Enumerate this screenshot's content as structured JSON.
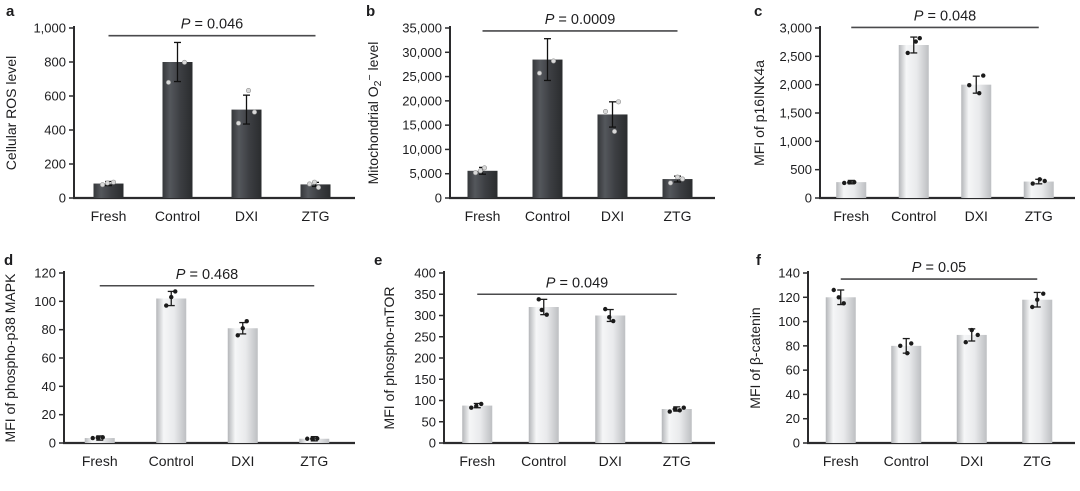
{
  "figure_background": "#ffffff",
  "colors": {
    "axis": "#2b2b2d",
    "text": "#1d1d1f",
    "sig_line": "#4a4a4c",
    "error_bar_dark_panel": "#111111",
    "error_bar_light_panel": "#1c1c1c",
    "dot_on_dark_bars": "#d9d9d9",
    "dot_stroke_on_dark_bars": "#8f8f8f",
    "dot_on_light_bars": "#1b1b1b",
    "dark_bar_gradient": [
      "#35373a",
      "#54575c",
      "#3c3e42",
      "#2a2c2e"
    ],
    "light_bar_gradient": [
      "#b4b6b9",
      "#f5f6f7",
      "#e9eaec",
      "#bdbfc2"
    ]
  },
  "chart_data": [
    {
      "panel_label": "a",
      "type": "bar",
      "ylabel": "Cellular ROS level",
      "ylabel_parts": [
        [
          "Cellular ROS level",
          "n"
        ]
      ],
      "p_text": "P = 0.046",
      "p_line_y": 955,
      "ylim": [
        0,
        1000
      ],
      "yticks": [
        {
          "v": 0,
          "label": "0"
        },
        {
          "v": 200,
          "label": "200"
        },
        {
          "v": 400,
          "label": "400"
        },
        {
          "v": 600,
          "label": "600"
        },
        {
          "v": 800,
          "label": "800"
        },
        {
          "v": 1000,
          "label": "1,000"
        }
      ],
      "categories": [
        "Fresh",
        "Control",
        "DXI",
        "ZTG"
      ],
      "bar_style": "dark",
      "values": [
        85,
        800,
        520,
        80
      ],
      "errors": [
        12,
        115,
        85,
        12
      ],
      "dots": [
        [
          {
            "v": 78,
            "dx": -6
          },
          {
            "v": 88,
            "dx": -1
          },
          {
            "v": 93,
            "dx": 5
          }
        ],
        [
          {
            "v": 680,
            "dx": -9
          },
          {
            "v": 798,
            "dx": 7
          }
        ],
        [
          {
            "v": 440,
            "dx": -8
          },
          {
            "v": 505,
            "dx": 8
          },
          {
            "v": 632,
            "dx": 2
          }
        ],
        [
          {
            "v": 62,
            "dx": 3
          },
          {
            "v": 82,
            "dx": -6
          },
          {
            "v": 93,
            "dx": -1
          }
        ]
      ]
    },
    {
      "panel_label": "b",
      "type": "bar",
      "ylabel": "Mitochondrial O2− level",
      "ylabel_parts": [
        [
          "Mitochondrial O",
          "n"
        ],
        [
          "2",
          "sub"
        ],
        [
          "−",
          "sup"
        ],
        [
          " level",
          "n"
        ]
      ],
      "p_text": "P = 0.0009",
      "p_line_y": 34400,
      "ylim": [
        0,
        35000
      ],
      "yticks": [
        {
          "v": 0,
          "label": "0"
        },
        {
          "v": 5000,
          "label": "5,000"
        },
        {
          "v": 10000,
          "label": "10,000"
        },
        {
          "v": 15000,
          "label": "15,000"
        },
        {
          "v": 20000,
          "label": "20,000"
        },
        {
          "v": 25000,
          "label": "25,000"
        },
        {
          "v": 30000,
          "label": "30,000"
        },
        {
          "v": 35000,
          "label": "35,000"
        }
      ],
      "categories": [
        "Fresh",
        "Control",
        "DXI",
        "ZTG"
      ],
      "bar_style": "dark",
      "values": [
        5600,
        28500,
        17200,
        3900
      ],
      "errors": [
        700,
        4300,
        2600,
        600
      ],
      "dots": [
        [
          {
            "v": 5200,
            "dx": -7
          },
          {
            "v": 5600,
            "dx": -2
          },
          {
            "v": 6200,
            "dx": 2
          }
        ],
        [
          {
            "v": 25700,
            "dx": -8
          },
          {
            "v": 28200,
            "dx": 6
          }
        ],
        [
          {
            "v": 13700,
            "dx": 2
          },
          {
            "v": 17800,
            "dx": -7
          },
          {
            "v": 19800,
            "dx": 6
          }
        ],
        [
          {
            "v": 3100,
            "dx": -7
          },
          {
            "v": 3900,
            "dx": 5
          },
          {
            "v": 4300,
            "dx": 0
          }
        ]
      ]
    },
    {
      "panel_label": "c",
      "type": "bar",
      "ylabel": "MFI of p16INK4a",
      "ylabel_parts": [
        [
          "MFI of p16INK4a",
          "n"
        ]
      ],
      "p_text": "P = 0.048",
      "p_line_y": 3010,
      "ylim": [
        0,
        3000
      ],
      "yticks": [
        {
          "v": 0,
          "label": "0"
        },
        {
          "v": 500,
          "label": "500"
        },
        {
          "v": 1000,
          "label": "1,000"
        },
        {
          "v": 1500,
          "label": "1,500"
        },
        {
          "v": 2000,
          "label": "2,000"
        },
        {
          "v": 2500,
          "label": "2,500"
        },
        {
          "v": 3000,
          "label": "3,000"
        }
      ],
      "categories": [
        "Fresh",
        "Control",
        "DXI",
        "ZTG"
      ],
      "bar_style": "light",
      "values": [
        280,
        2700,
        2000,
        290
      ],
      "errors": [
        30,
        140,
        150,
        40
      ],
      "dots": [
        [
          {
            "v": 265,
            "dx": -7
          },
          {
            "v": 275,
            "dx": -2
          },
          {
            "v": 280,
            "dx": 3
          }
        ],
        [
          {
            "v": 2560,
            "dx": -6
          },
          {
            "v": 2760,
            "dx": 2
          },
          {
            "v": 2820,
            "dx": 6
          }
        ],
        [
          {
            "v": 1850,
            "dx": 3
          },
          {
            "v": 1990,
            "dx": -7
          },
          {
            "v": 2160,
            "dx": 7
          }
        ],
        [
          {
            "v": 255,
            "dx": -6
          },
          {
            "v": 300,
            "dx": 6
          },
          {
            "v": 330,
            "dx": 1
          }
        ]
      ]
    },
    {
      "panel_label": "d",
      "type": "bar",
      "ylabel": "MFI of phospho-p38 MAPK",
      "ylabel_parts": [
        [
          "MFI of phospho-p38 MAPK",
          "n"
        ]
      ],
      "p_text": "P = 0.468",
      "p_line_y": 111,
      "ylim": [
        0,
        120
      ],
      "yticks": [
        {
          "v": 0,
          "label": "0"
        },
        {
          "v": 20,
          "label": "20"
        },
        {
          "v": 40,
          "label": "40"
        },
        {
          "v": 60,
          "label": "60"
        },
        {
          "v": 80,
          "label": "80"
        },
        {
          "v": 100,
          "label": "100"
        },
        {
          "v": 120,
          "label": "120"
        }
      ],
      "categories": [
        "Fresh",
        "Control",
        "DXI",
        "ZTG"
      ],
      "bar_style": "light",
      "values": [
        3.5,
        102,
        81,
        3
      ],
      "errors": [
        1.5,
        5,
        4,
        1.5
      ],
      "dots": [
        [
          {
            "v": 3.5,
            "dx": -7
          },
          {
            "v": 3.8,
            "dx": -2
          },
          {
            "v": 4,
            "dx": 3
          }
        ],
        [
          {
            "v": 97,
            "dx": -5
          },
          {
            "v": 103,
            "dx": 0
          },
          {
            "v": 107,
            "dx": 4
          }
        ],
        [
          {
            "v": 76,
            "dx": -5
          },
          {
            "v": 81,
            "dx": 0
          },
          {
            "v": 86,
            "dx": 4
          }
        ],
        [
          {
            "v": 3,
            "dx": -7
          },
          {
            "v": 3,
            "dx": -2
          },
          {
            "v": 3.2,
            "dx": 3
          }
        ]
      ]
    },
    {
      "panel_label": "e",
      "type": "bar",
      "ylabel": "MFI of phospho-mTOR",
      "ylabel_parts": [
        [
          "MFI of phospho-mTOR",
          "n"
        ]
      ],
      "p_text": "P = 0.049",
      "p_line_y": 350,
      "ylim": [
        0,
        400
      ],
      "yticks": [
        {
          "v": 0,
          "label": "0"
        },
        {
          "v": 50,
          "label": "50"
        },
        {
          "v": 100,
          "label": "100"
        },
        {
          "v": 150,
          "label": "150"
        },
        {
          "v": 200,
          "label": "200"
        },
        {
          "v": 250,
          "label": "250"
        },
        {
          "v": 300,
          "label": "300"
        },
        {
          "v": 350,
          "label": "350"
        },
        {
          "v": 400,
          "label": "400"
        }
      ],
      "categories": [
        "Fresh",
        "Control",
        "DXI",
        "ZTG"
      ],
      "bar_style": "light",
      "values": [
        88,
        320,
        300,
        80
      ],
      "errors": [
        5,
        18,
        14,
        5
      ],
      "dots": [
        [
          {
            "v": 83,
            "dx": -6
          },
          {
            "v": 87,
            "dx": -1
          },
          {
            "v": 92,
            "dx": 4
          }
        ],
        [
          {
            "v": 302,
            "dx": 3
          },
          {
            "v": 313,
            "dx": -2
          },
          {
            "v": 338,
            "dx": -5
          }
        ],
        [
          {
            "v": 287,
            "dx": 3
          },
          {
            "v": 296,
            "dx": -1
          },
          {
            "v": 315,
            "dx": -5
          }
        ],
        [
          {
            "v": 74,
            "dx": -7
          },
          {
            "v": 80,
            "dx": -2
          },
          {
            "v": 77,
            "dx": 3
          },
          {
            "v": 83,
            "dx": 7
          }
        ]
      ]
    },
    {
      "panel_label": "f",
      "type": "bar",
      "ylabel": "MFI of β-catenin",
      "ylabel_parts": [
        [
          "MFI of β-catenin",
          "n"
        ]
      ],
      "p_text": "P = 0.05",
      "p_line_y": 135,
      "ylim": [
        0,
        140
      ],
      "yticks": [
        {
          "v": 0,
          "label": "0"
        },
        {
          "v": 20,
          "label": "20"
        },
        {
          "v": 40,
          "label": "40"
        },
        {
          "v": 60,
          "label": "60"
        },
        {
          "v": 80,
          "label": "80"
        },
        {
          "v": 100,
          "label": "100"
        },
        {
          "v": 120,
          "label": "120"
        },
        {
          "v": 140,
          "label": "140"
        }
      ],
      "categories": [
        "Fresh",
        "Control",
        "DXI",
        "ZTG"
      ],
      "bar_style": "light",
      "values": [
        120,
        80,
        89,
        118
      ],
      "errors": [
        6,
        6,
        5,
        6
      ],
      "dots": [
        [
          {
            "v": 126,
            "dx": -7
          },
          {
            "v": 120,
            "dx": -2
          },
          {
            "v": 115,
            "dx": 3
          }
        ],
        [
          {
            "v": 74,
            "dx": 1
          },
          {
            "v": 80,
            "dx": -6
          },
          {
            "v": 82,
            "dx": 5
          }
        ],
        [
          {
            "v": 83,
            "dx": -6
          },
          {
            "v": 93,
            "dx": 0
          },
          {
            "v": 89,
            "dx": 6
          }
        ],
        [
          {
            "v": 112,
            "dx": -5
          },
          {
            "v": 118,
            "dx": 0
          },
          {
            "v": 123,
            "dx": 6
          }
        ]
      ]
    }
  ]
}
